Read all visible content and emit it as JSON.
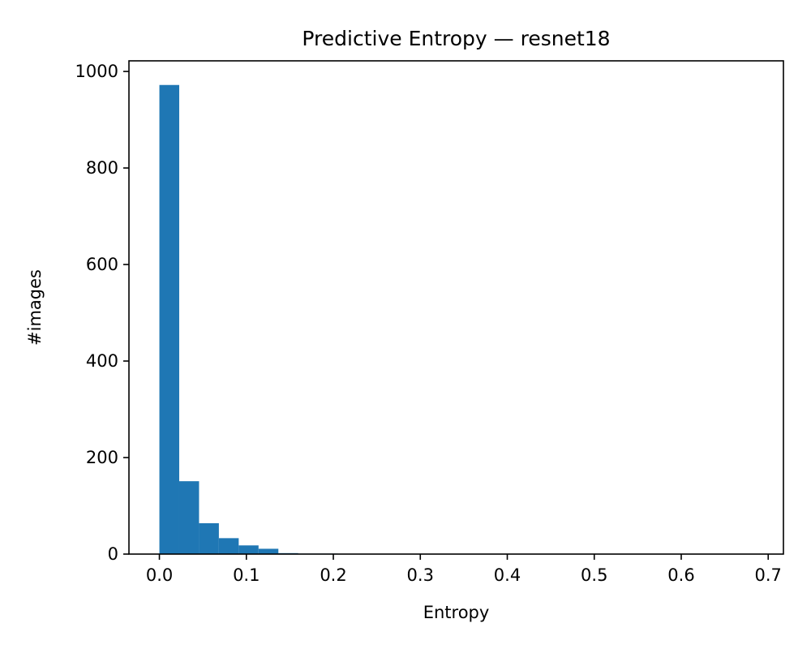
{
  "chart_data": {
    "type": "bar",
    "title": "Predictive Entropy — resnet18",
    "xlabel": "Entropy",
    "ylabel": "#images",
    "xlim": [
      -0.035,
      0.7175
    ],
    "ylim": [
      0,
      1022
    ],
    "xticks": [
      0.0,
      0.1,
      0.2,
      0.3,
      0.4,
      0.5,
      0.6,
      0.7
    ],
    "xtick_labels": [
      "0.0",
      "0.1",
      "0.2",
      "0.3",
      "0.4",
      "0.5",
      "0.6",
      "0.7"
    ],
    "yticks": [
      0,
      200,
      400,
      600,
      800,
      1000
    ],
    "ytick_labels": [
      "0",
      "200",
      "400",
      "600",
      "800",
      "1000"
    ],
    "bin_width": 0.0228,
    "bins_start": 0.0,
    "values": [
      972,
      151,
      64,
      33,
      18,
      11,
      2,
      1,
      1,
      0,
      0,
      0,
      0,
      0,
      0,
      0,
      0,
      0,
      0,
      0,
      0,
      0,
      0,
      0,
      0,
      0,
      0,
      0,
      0,
      0
    ],
    "color": "#1f77b4",
    "grid": false,
    "legend": "none"
  }
}
